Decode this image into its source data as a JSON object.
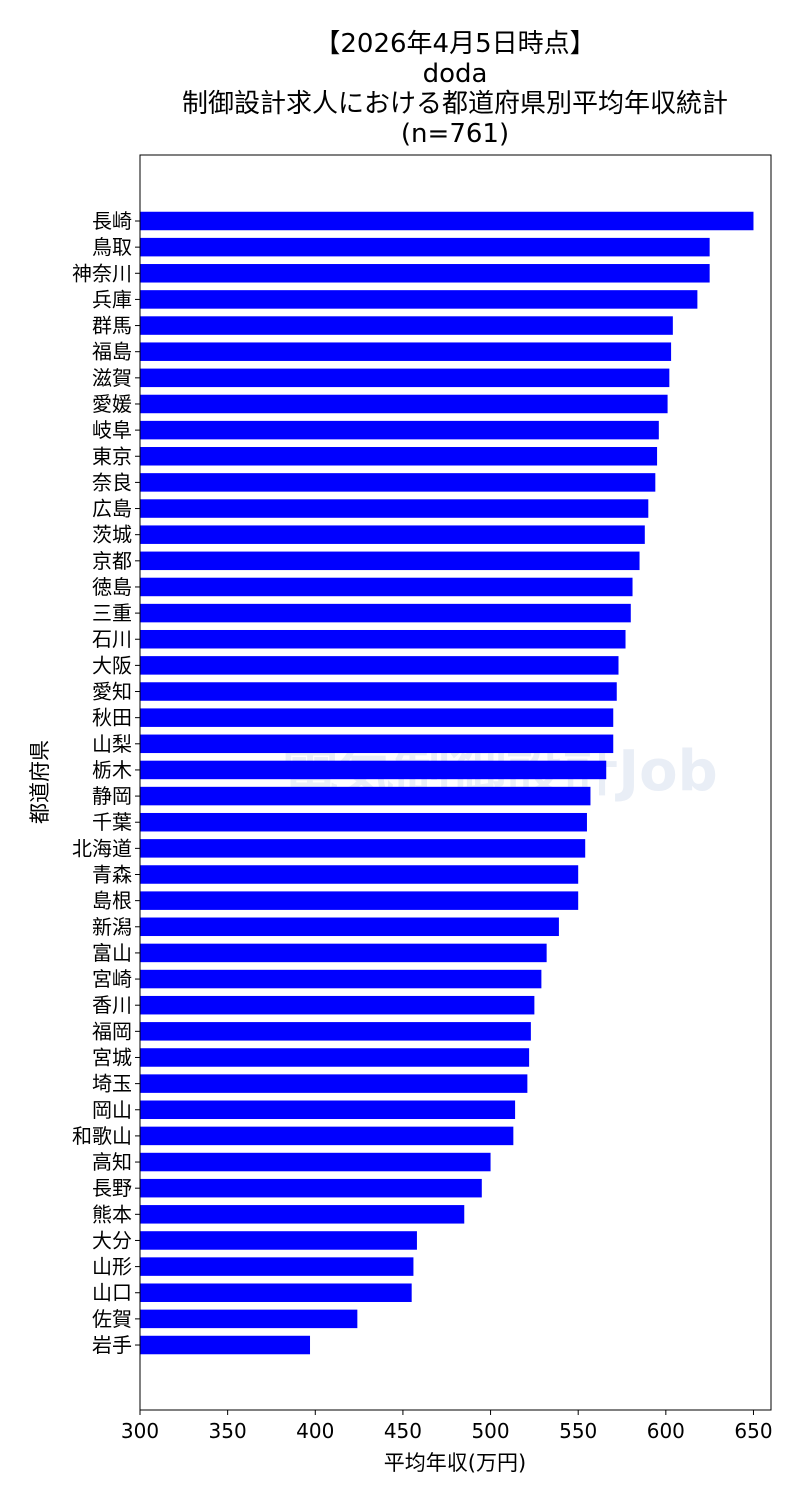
{
  "chart_data": {
    "type": "bar",
    "orientation": "horizontal",
    "title": [
      "【2026年4月5日時点】",
      "doda",
      "制御設計求人における都道府県別平均年収統計",
      "(n=761)"
    ],
    "xlabel": "平均年収(万円)",
    "ylabel": "都道府県",
    "xlim": [
      300,
      660
    ],
    "xticks": [
      300,
      350,
      400,
      450,
      500,
      550,
      600,
      650
    ],
    "grid": false,
    "bar_color": "#0000ff",
    "categories": [
      "長崎",
      "鳥取",
      "神奈川",
      "兵庫",
      "群馬",
      "福島",
      "滋賀",
      "愛媛",
      "岐阜",
      "東京",
      "奈良",
      "広島",
      "茨城",
      "京都",
      "徳島",
      "三重",
      "石川",
      "大阪",
      "愛知",
      "秋田",
      "山梨",
      "栃木",
      "静岡",
      "千葉",
      "北海道",
      "青森",
      "島根",
      "新潟",
      "富山",
      "宮崎",
      "香川",
      "福岡",
      "宮城",
      "埼玉",
      "岡山",
      "和歌山",
      "高知",
      "長野",
      "熊本",
      "大分",
      "山形",
      "山口",
      "佐賀",
      "岩手"
    ],
    "values": [
      650,
      625,
      625,
      618,
      604,
      603,
      602,
      601,
      596,
      595,
      594,
      590,
      588,
      585,
      581,
      580,
      577,
      573,
      572,
      570,
      570,
      566,
      557,
      555,
      554,
      550,
      550,
      539,
      532,
      529,
      525,
      523,
      522,
      521,
      514,
      513,
      500,
      495,
      485,
      458,
      456,
      455,
      424,
      397
    ]
  },
  "watermark": {
    "text": "電気制御設計Job"
  }
}
